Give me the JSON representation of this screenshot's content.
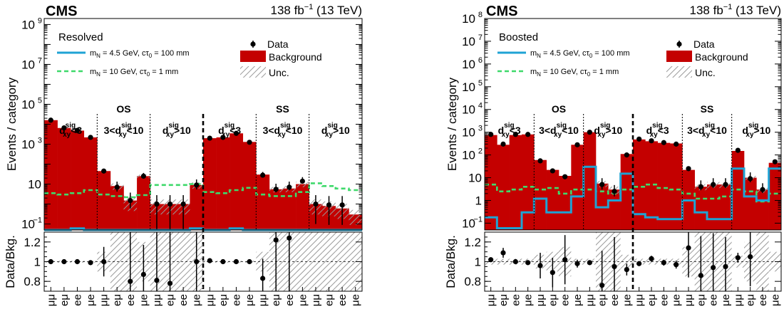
{
  "common": {
    "lumi_prefix": "138 fb",
    "lumi_exp": "−1",
    "lumi_suffix": " (13 TeV)",
    "cms": "CMS",
    "ylabel_main": "Events / category",
    "ylabel_ratio": "Data/Bkg.",
    "legend": {
      "data": "Data",
      "background": "Background",
      "unc": "Unc.",
      "sig1_prefix": "m",
      "sig1_sub": "N",
      "sig1_mid": " = 4.5 GeV, cτ",
      "sig1_sub2": "0",
      "sig1_suffix": " = 100 mm",
      "sig2_prefix": "m",
      "sig2_sub": "N",
      "sig2_mid": " = 10 GeV, cτ",
      "sig2_sub2": "0",
      "sig2_suffix": " = 1 mm"
    },
    "regions": {
      "os": "OS",
      "ss": "SS"
    },
    "bins": {
      "low": {
        "d": "d",
        "sup": "sig",
        "sub": "xy",
        "rest": "<3"
      },
      "mid": {
        "pre": "3<",
        "d": "d",
        "sup": "sig",
        "sub": "xy",
        "rest": "<10"
      },
      "high": {
        "d": "d",
        "sup": "sig",
        "sub": "xy",
        "rest": ">10"
      }
    },
    "categories": [
      "μμ",
      "eμ",
      "ee",
      "μe",
      "μμ",
      "eμ",
      "ee",
      "μe",
      "μμ",
      "eμ",
      "ee",
      "μe",
      "μμ",
      "eμ",
      "ee",
      "μe",
      "μμ",
      "eμ",
      "ee",
      "μe",
      "μμ",
      "eμ",
      "ee",
      "μe"
    ],
    "colors": {
      "background": "#c40000",
      "sig1": "#1fa3d4",
      "sig2": "#3fd96b",
      "data": "#000000",
      "unc": "#9a9a9a"
    }
  },
  "chart_data": [
    {
      "type": "bar",
      "panel": "Resolved",
      "title": "Resolved",
      "categories_ref": "common.categories",
      "xlabel": "",
      "ylabel": "Events / category",
      "ylim": [
        0.05,
        2000000000
      ],
      "yscale": "log",
      "yticks": [
        "10⁻¹",
        "10",
        "10³",
        "10⁵",
        "10⁷",
        "10⁹"
      ],
      "background": [
        16000,
        6500,
        4800,
        2200,
        45,
        8,
        1.5,
        25,
        1,
        1,
        1,
        9,
        2000,
        2200,
        3500,
        1300,
        30,
        5.5,
        6,
        10,
        1,
        0.8,
        0.6,
        0.3
      ],
      "data": [
        16000,
        6600,
        4900,
        2200,
        45,
        7,
        1.5,
        25,
        1,
        1,
        1,
        9,
        2000,
        2200,
        3500,
        1250,
        28,
        5.5,
        7,
        14,
        1,
        0.9,
        0.9,
        null
      ],
      "data_err_lo": [
        0,
        0,
        0,
        0,
        0.1,
        0.4,
        0.6,
        0.2,
        0.95,
        0.95,
        0.95,
        0.4,
        0,
        0,
        0,
        0,
        0.15,
        0.3,
        0.3,
        0.2,
        0.9,
        0.9,
        0.9,
        0
      ],
      "data_err_hi": [
        0,
        0,
        0,
        0,
        0.1,
        0.3,
        0.5,
        0.15,
        0.6,
        0.6,
        0.6,
        0.3,
        0,
        0,
        0,
        0,
        0.15,
        0.3,
        0.3,
        0.2,
        0.6,
        0.6,
        0.6,
        0
      ],
      "signal_1": [
        0.04,
        0.04,
        0.06,
        0.04,
        0.04,
        0.04,
        0.04,
        0.04,
        0.04,
        0.04,
        0.04,
        0.06,
        0.04,
        0.04,
        0.06,
        0.04,
        0.04,
        0.04,
        0.04,
        0.04,
        0.04,
        0.04,
        0.04,
        0.04
      ],
      "signal_2": [
        3.5,
        3,
        3.5,
        5,
        3,
        2.5,
        2.2,
        2.8,
        9,
        9,
        9,
        10,
        4,
        3.5,
        5,
        6.5,
        3,
        2.5,
        2.5,
        4,
        11,
        8,
        6,
        5
      ],
      "ratio": [
        1.0,
        1.0,
        1.0,
        0.99,
        1.0,
        null,
        0.8,
        0.87,
        0.81,
        0.78,
        null,
        1.0,
        1.01,
        1.0,
        1.0,
        1.0,
        0.83,
        1.22,
        1.24,
        null,
        null,
        null,
        null,
        null
      ],
      "ratio_err": [
        0.01,
        0.01,
        0.01,
        0.01,
        0.15,
        null,
        0.6,
        0.3,
        0.6,
        0.6,
        null,
        0.7,
        0.01,
        0.01,
        0.01,
        0.01,
        0.2,
        0.7,
        0.7,
        null,
        null,
        null,
        null,
        null
      ],
      "unc_band": [
        0.01,
        0.01,
        0.01,
        0.01,
        0.1,
        0.35,
        0.7,
        0.2,
        0.7,
        0.7,
        0.7,
        0.35,
        0.01,
        0.01,
        0.01,
        0.01,
        0.1,
        0.3,
        0.35,
        0.3,
        0.7,
        0.7,
        0.7,
        0.7
      ],
      "ratio_ylim": [
        0.7,
        1.3
      ],
      "ratio_yticks": [
        "0.8",
        "1",
        "1.2"
      ]
    },
    {
      "type": "bar",
      "panel": "Boosted",
      "title": "Boosted",
      "categories_ref": "common.categories",
      "xlabel": "",
      "ylabel": "Events / category",
      "ylim": [
        0.05,
        100000000
      ],
      "yscale": "log",
      "yticks": [
        "10⁻¹",
        "1",
        "10",
        "10²",
        "10³",
        "10⁴",
        "10⁵",
        "10⁶",
        "10⁷",
        "10⁸"
      ],
      "background": [
        750,
        280,
        750,
        800,
        60,
        22,
        12,
        280,
        1000,
        5.5,
        3,
        110,
        480,
        400,
        340,
        320,
        22,
        4,
        5,
        5,
        150,
        10,
        3,
        45
      ],
      "data": [
        800,
        300,
        800,
        800,
        55,
        20,
        11,
        280,
        1000,
        5,
        2.5,
        100,
        500,
        420,
        350,
        300,
        25,
        4,
        5,
        5,
        160,
        9,
        3,
        50
      ],
      "data_err_lo": [
        0,
        0,
        0,
        0,
        0,
        0,
        0,
        0,
        0,
        0.4,
        0.4,
        0,
        0,
        0,
        0,
        0,
        0,
        0.3,
        0.3,
        0.3,
        0,
        0.3,
        0.3,
        0
      ],
      "data_err_hi": [
        0,
        0,
        0,
        0,
        0,
        0,
        0,
        0,
        0,
        0.3,
        0.3,
        0,
        0,
        0,
        0,
        0,
        0,
        0.3,
        0.3,
        0.3,
        0,
        0.3,
        0.3,
        0
      ],
      "signal_1": [
        0.18,
        0.06,
        0.06,
        0.3,
        1.2,
        0.3,
        0.3,
        1.5,
        30,
        0.5,
        1,
        15,
        0.25,
        0.18,
        0.15,
        0.15,
        1,
        0.3,
        0.15,
        0.15,
        25,
        1.5,
        1,
        25
      ],
      "signal_2": [
        5,
        2.5,
        3,
        4,
        3,
        3.5,
        2,
        3,
        3,
        2.5,
        2,
        3,
        4,
        5,
        3.5,
        3,
        2,
        1.2,
        1.2,
        1.5,
        3,
        2.5,
        0.9,
        2
      ],
      "ratio": [
        1.02,
        1.09,
        1.0,
        0.99,
        0.96,
        0.89,
        1.02,
        0.98,
        0.99,
        0.76,
        0.95,
        0.92,
        0.98,
        1.03,
        0.99,
        0.97,
        1.14,
        0.86,
        0.94,
        0.95,
        1.04,
        1.05,
        null,
        null
      ],
      "ratio_err": [
        0.02,
        0.05,
        0.02,
        0.02,
        0.13,
        0.15,
        0.25,
        0.04,
        0.02,
        0.35,
        0.3,
        0.06,
        0.02,
        0.03,
        0.03,
        0.04,
        0.3,
        0.4,
        0.35,
        0.3,
        0.05,
        0.3,
        null,
        null
      ],
      "unc_band": [
        0.03,
        0.03,
        0.03,
        0.03,
        0.07,
        0.1,
        0.15,
        0.03,
        0.03,
        0.3,
        0.35,
        0.07,
        0.03,
        0.03,
        0.03,
        0.03,
        0.15,
        0.3,
        0.3,
        0.3,
        0.06,
        0.2,
        0.3,
        0.1
      ],
      "ratio_ylim": [
        0.7,
        1.3
      ],
      "ratio_yticks": [
        "0.8",
        "1",
        "1.2"
      ]
    }
  ]
}
